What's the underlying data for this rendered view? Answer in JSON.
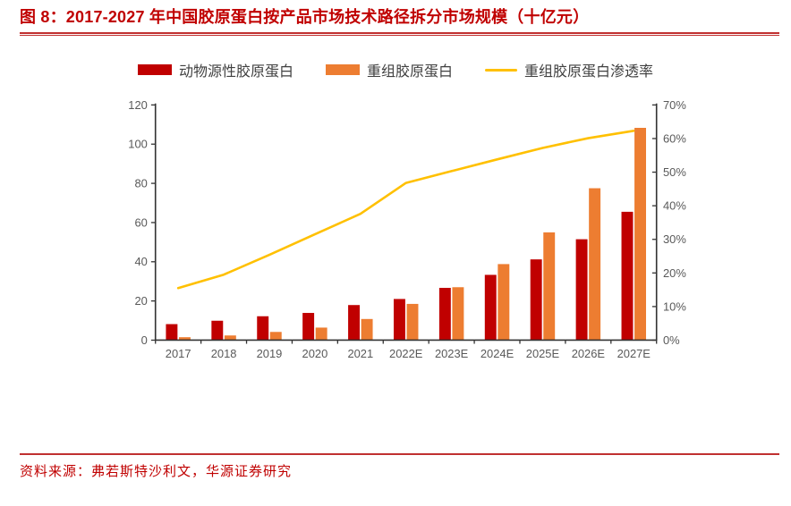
{
  "header": {
    "title": "图 8：2017-2027 年中国胶原蛋白按产品市场技术路径拆分市场规模（十亿元）"
  },
  "legend": {
    "items": [
      {
        "label": "动物源性胶原蛋白",
        "marker": "bar",
        "color": "#C00000"
      },
      {
        "label": "重组胶原蛋白",
        "marker": "bar",
        "color": "#ED7D31"
      },
      {
        "label": "重组胶原蛋白渗透率",
        "marker": "line",
        "color": "#FFC000"
      }
    ]
  },
  "footer": {
    "source_text": "资料来源：弗若斯特沙利文，华源证券研究"
  },
  "colors": {
    "accent_red": "#C00000",
    "bar_animal": "#C00000",
    "bar_recombinant": "#ED7D31",
    "penetration_line": "#FFC000",
    "axis_line": "#333333",
    "axis_text": "#595959",
    "legend_text": "#404040"
  },
  "chart_data": {
    "type": "bar",
    "subtype": "grouped-bar-with-line-combo",
    "title": "2017-2027 年中国胶原蛋白按产品市场技术路径拆分市场规模（十亿元）",
    "unit": "十亿元",
    "categories": [
      "2017",
      "2018",
      "2019",
      "2020",
      "2021",
      "2022E",
      "2023E",
      "2024E",
      "2025E",
      "2026E",
      "2027E"
    ],
    "series": [
      {
        "name": "动物源性胶原蛋白",
        "type": "bar",
        "y_axis": "left",
        "color": "#C00000",
        "values": [
          8.2,
          9.9,
          12.2,
          13.9,
          17.9,
          21.0,
          26.7,
          33.3,
          41.2,
          51.5,
          65.5
        ]
      },
      {
        "name": "重组胶原蛋白",
        "type": "bar",
        "y_axis": "left",
        "color": "#ED7D31",
        "values": [
          1.5,
          2.4,
          4.2,
          6.4,
          10.8,
          18.5,
          27.0,
          38.8,
          55.0,
          77.5,
          108.3
        ]
      },
      {
        "name": "重组胶原蛋白渗透率",
        "type": "line",
        "y_axis": "right",
        "color": "#FFC000",
        "values_pct": [
          15.5,
          19.5,
          25.4,
          31.5,
          37.6,
          46.8,
          50.3,
          53.8,
          57.2,
          60.1,
          62.3
        ]
      }
    ],
    "left_axis": {
      "min": 0,
      "max": 120,
      "tick_step": 20,
      "tick_labels": [
        "0",
        "20",
        "40",
        "60",
        "80",
        "100",
        "120"
      ]
    },
    "right_axis": {
      "min_pct": 0,
      "max_pct": 70,
      "tick_step_pct": 10,
      "tick_labels": [
        "0%",
        "10%",
        "20%",
        "30%",
        "40%",
        "50%",
        "60%",
        "70%"
      ]
    },
    "grid": false,
    "legend_position": "top"
  }
}
